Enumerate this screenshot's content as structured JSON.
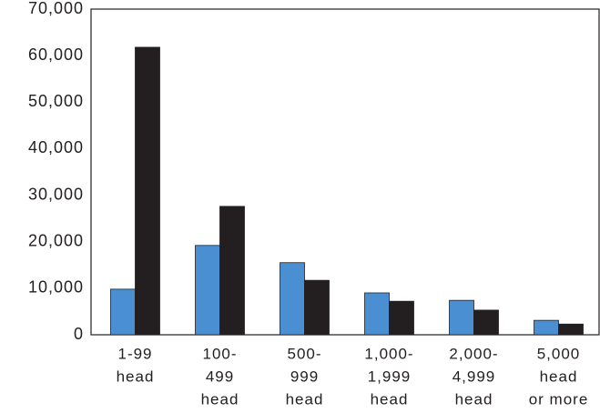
{
  "chart_data": {
    "type": "bar",
    "categories": [
      [
        "1-99",
        "head"
      ],
      [
        "100-",
        "499",
        "head"
      ],
      [
        "500-",
        "999",
        "head"
      ],
      [
        "1,000-",
        "1,999",
        "head"
      ],
      [
        "2,000-",
        "4,999",
        "head"
      ],
      [
        "5,000",
        "head",
        "or more"
      ]
    ],
    "series": [
      {
        "color": "#4a8fd1",
        "values": [
          9800,
          19200,
          15500,
          9000,
          7400,
          3100
        ]
      },
      {
        "color": "#231f20",
        "values": [
          61800,
          27600,
          11700,
          7200,
          5300,
          2300
        ]
      }
    ],
    "ylim": [
      0,
      70000
    ],
    "yticks": [
      0,
      {
        "value": 10000,
        "label": "10,000"
      },
      {
        "value": 20000,
        "label": "20,000"
      },
      {
        "value": 30000,
        "label": "30,000"
      },
      {
        "value": 40000,
        "label": "40,000"
      },
      {
        "value": 50000,
        "label": "50,000"
      },
      {
        "value": 60000,
        "label": "60,000"
      },
      {
        "value": 70000,
        "label": "70,000"
      }
    ]
  }
}
